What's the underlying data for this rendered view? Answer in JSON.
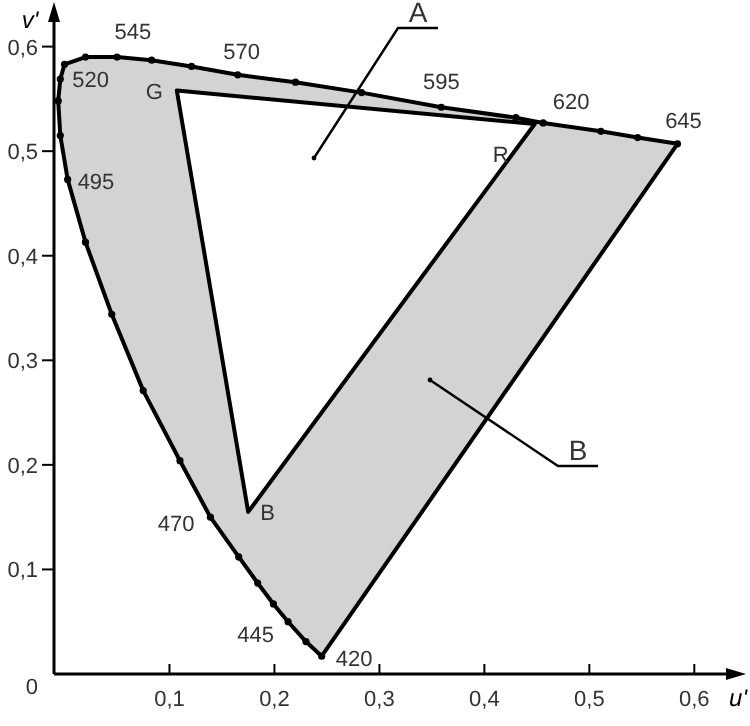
{
  "chart_data": {
    "type": "area",
    "xlabel": "u'",
    "ylabel": "v'",
    "xlim": [
      -0.01,
      0.634
    ],
    "ylim": [
      0,
      0.635
    ],
    "xticks": [
      {
        "value": 0.1,
        "label": "0,1"
      },
      {
        "value": 0.2,
        "label": "0,2"
      },
      {
        "value": 0.3,
        "label": "0,3"
      },
      {
        "value": 0.4,
        "label": "0,4"
      },
      {
        "value": 0.5,
        "label": "0,5"
      },
      {
        "value": 0.6,
        "label": "0,6"
      }
    ],
    "yticks": [
      {
        "value": 0,
        "label": "0"
      },
      {
        "value": 0.1,
        "label": "0,1"
      },
      {
        "value": 0.2,
        "label": "0,2"
      },
      {
        "value": 0.3,
        "label": "0,3"
      },
      {
        "value": 0.4,
        "label": "0,4"
      },
      {
        "value": 0.5,
        "label": "0,5"
      },
      {
        "value": 0.6,
        "label": "0,6"
      }
    ],
    "grid": false,
    "series": [
      {
        "color": "#d3d3d3",
        "marker": "circle",
        "x": [
          0.245,
          0.23,
          0.213,
          0.199,
          0.184,
          0.166,
          0.139,
          0.11,
          0.075,
          0.045,
          0.02,
          0.003,
          -0.004,
          -0.006,
          -0.004,
          0.0,
          0.02,
          0.05,
          0.083,
          0.121,
          0.165,
          0.22,
          0.283,
          0.359,
          0.43,
          0.456,
          0.511,
          0.546,
          0.584
        ],
        "values": [
          0.017,
          0.031,
          0.05,
          0.067,
          0.087,
          0.112,
          0.15,
          0.204,
          0.271,
          0.344,
          0.413,
          0.473,
          0.515,
          0.548,
          0.569,
          0.583,
          0.59,
          0.59,
          0.587,
          0.581,
          0.573,
          0.566,
          0.556,
          0.542,
          0.532,
          0.527,
          0.519,
          0.513,
          0.507
        ]
      },
      {
        "color": "#ffffff",
        "marker": "none",
        "x": [
          0.107,
          0.448,
          0.175
        ],
        "values": [
          0.558,
          0.526,
          0.155
        ]
      }
    ],
    "annotations": [
      {
        "text": "420",
        "x": 0.245,
        "y": 0.017
      },
      {
        "text": "445",
        "x": 0.213,
        "y": 0.05
      },
      {
        "text": "470",
        "x": 0.139,
        "y": 0.15
      },
      {
        "text": "495",
        "x": 0.003,
        "y": 0.473
      },
      {
        "text": "520",
        "x": -0.004,
        "y": 0.569
      },
      {
        "text": "545",
        "x": 0.05,
        "y": 0.59
      },
      {
        "text": "570",
        "x": 0.165,
        "y": 0.573
      },
      {
        "text": "595",
        "x": 0.359,
        "y": 0.542
      },
      {
        "text": "620",
        "x": 0.456,
        "y": 0.527
      },
      {
        "text": "645",
        "x": 0.584,
        "y": 0.507
      },
      {
        "text": "G",
        "x": 0.107,
        "y": 0.558
      },
      {
        "text": "R",
        "x": 0.448,
        "y": 0.526
      },
      {
        "text": "B",
        "x": 0.175,
        "y": 0.155
      },
      "A",
      "B"
    ]
  }
}
